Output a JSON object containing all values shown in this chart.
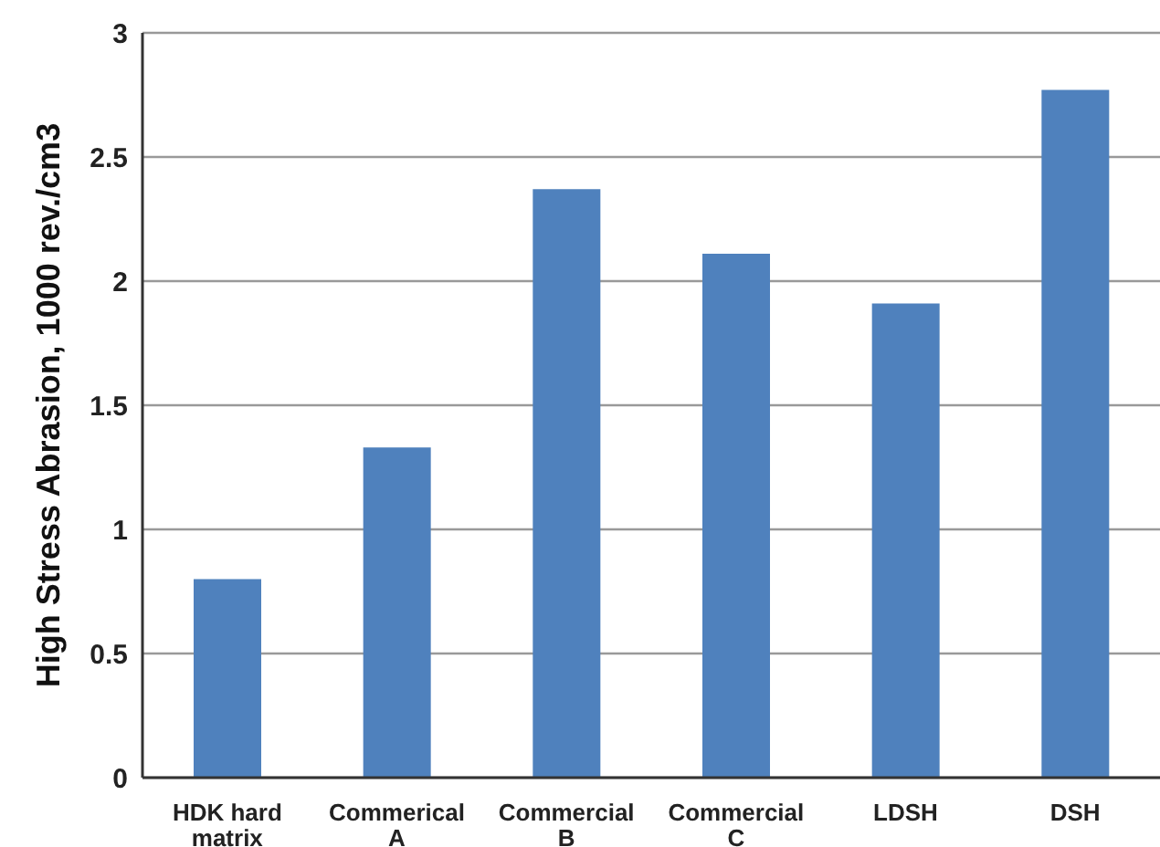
{
  "chart_data": {
    "type": "bar",
    "ylabel": "High Stress Abrasion, 1000 rev./cm3",
    "categories": [
      "HDK hard matrix",
      "Commerical A",
      "Commercial B",
      "Commercial C",
      "LDSH",
      "DSH"
    ],
    "values": [
      0.8,
      1.33,
      2.37,
      2.11,
      1.91,
      2.77
    ],
    "color": "#4f81bd",
    "ylim": [
      0,
      3
    ],
    "yticks": [
      0,
      0.5,
      1,
      1.5,
      2,
      2.5,
      3
    ],
    "grid": "y",
    "legend": false
  }
}
